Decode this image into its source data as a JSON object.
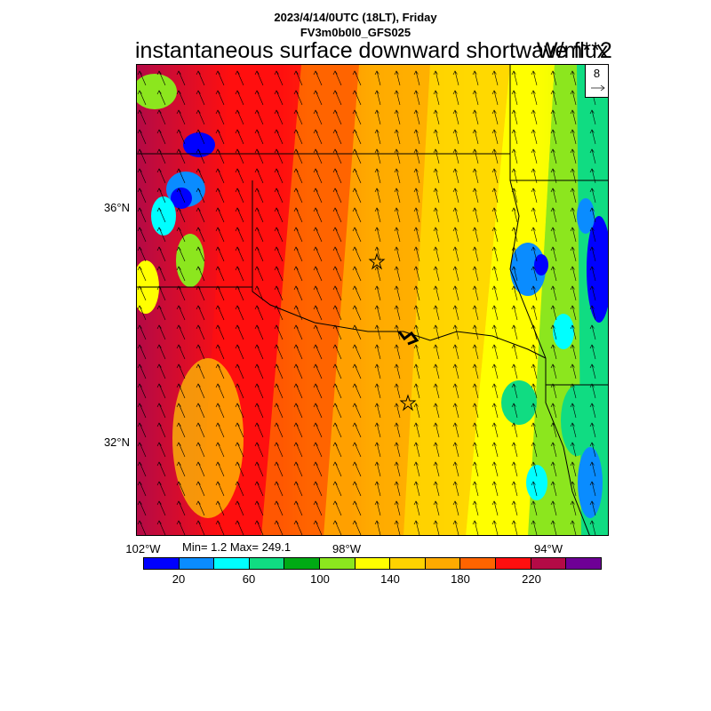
{
  "header": {
    "datetime": "2023/4/14/0UTC (18LT), Friday",
    "model": "FV3m0b0l0_GFS025",
    "title": "instantaneous surface downward shortwave flux",
    "units": "W/m**2"
  },
  "vector_reference": {
    "value": "8"
  },
  "axes": {
    "lat_labels": [
      "36°N",
      "32°N"
    ],
    "lon_labels": [
      "102°W",
      "98°W",
      "94°W"
    ]
  },
  "stats": {
    "text": "Min= 1.2 Max= 249.1"
  },
  "colorbar": {
    "colors": [
      "#0000ff",
      "#0a8cff",
      "#00ffff",
      "#10dc82",
      "#00aa14",
      "#8ce61e",
      "#ffff00",
      "#ffd200",
      "#ffaa00",
      "#ff6400",
      "#ff0f0f",
      "#b40a46",
      "#6e0096"
    ],
    "labels": [
      "20",
      "60",
      "100",
      "140",
      "180",
      "220"
    ]
  },
  "map": {
    "color_scheme": "banded shortwave flux field, low values west/east patches blue-green, high values west red",
    "markers": [
      "star-marker",
      "star-marker"
    ],
    "wind_direction": "southerly"
  }
}
